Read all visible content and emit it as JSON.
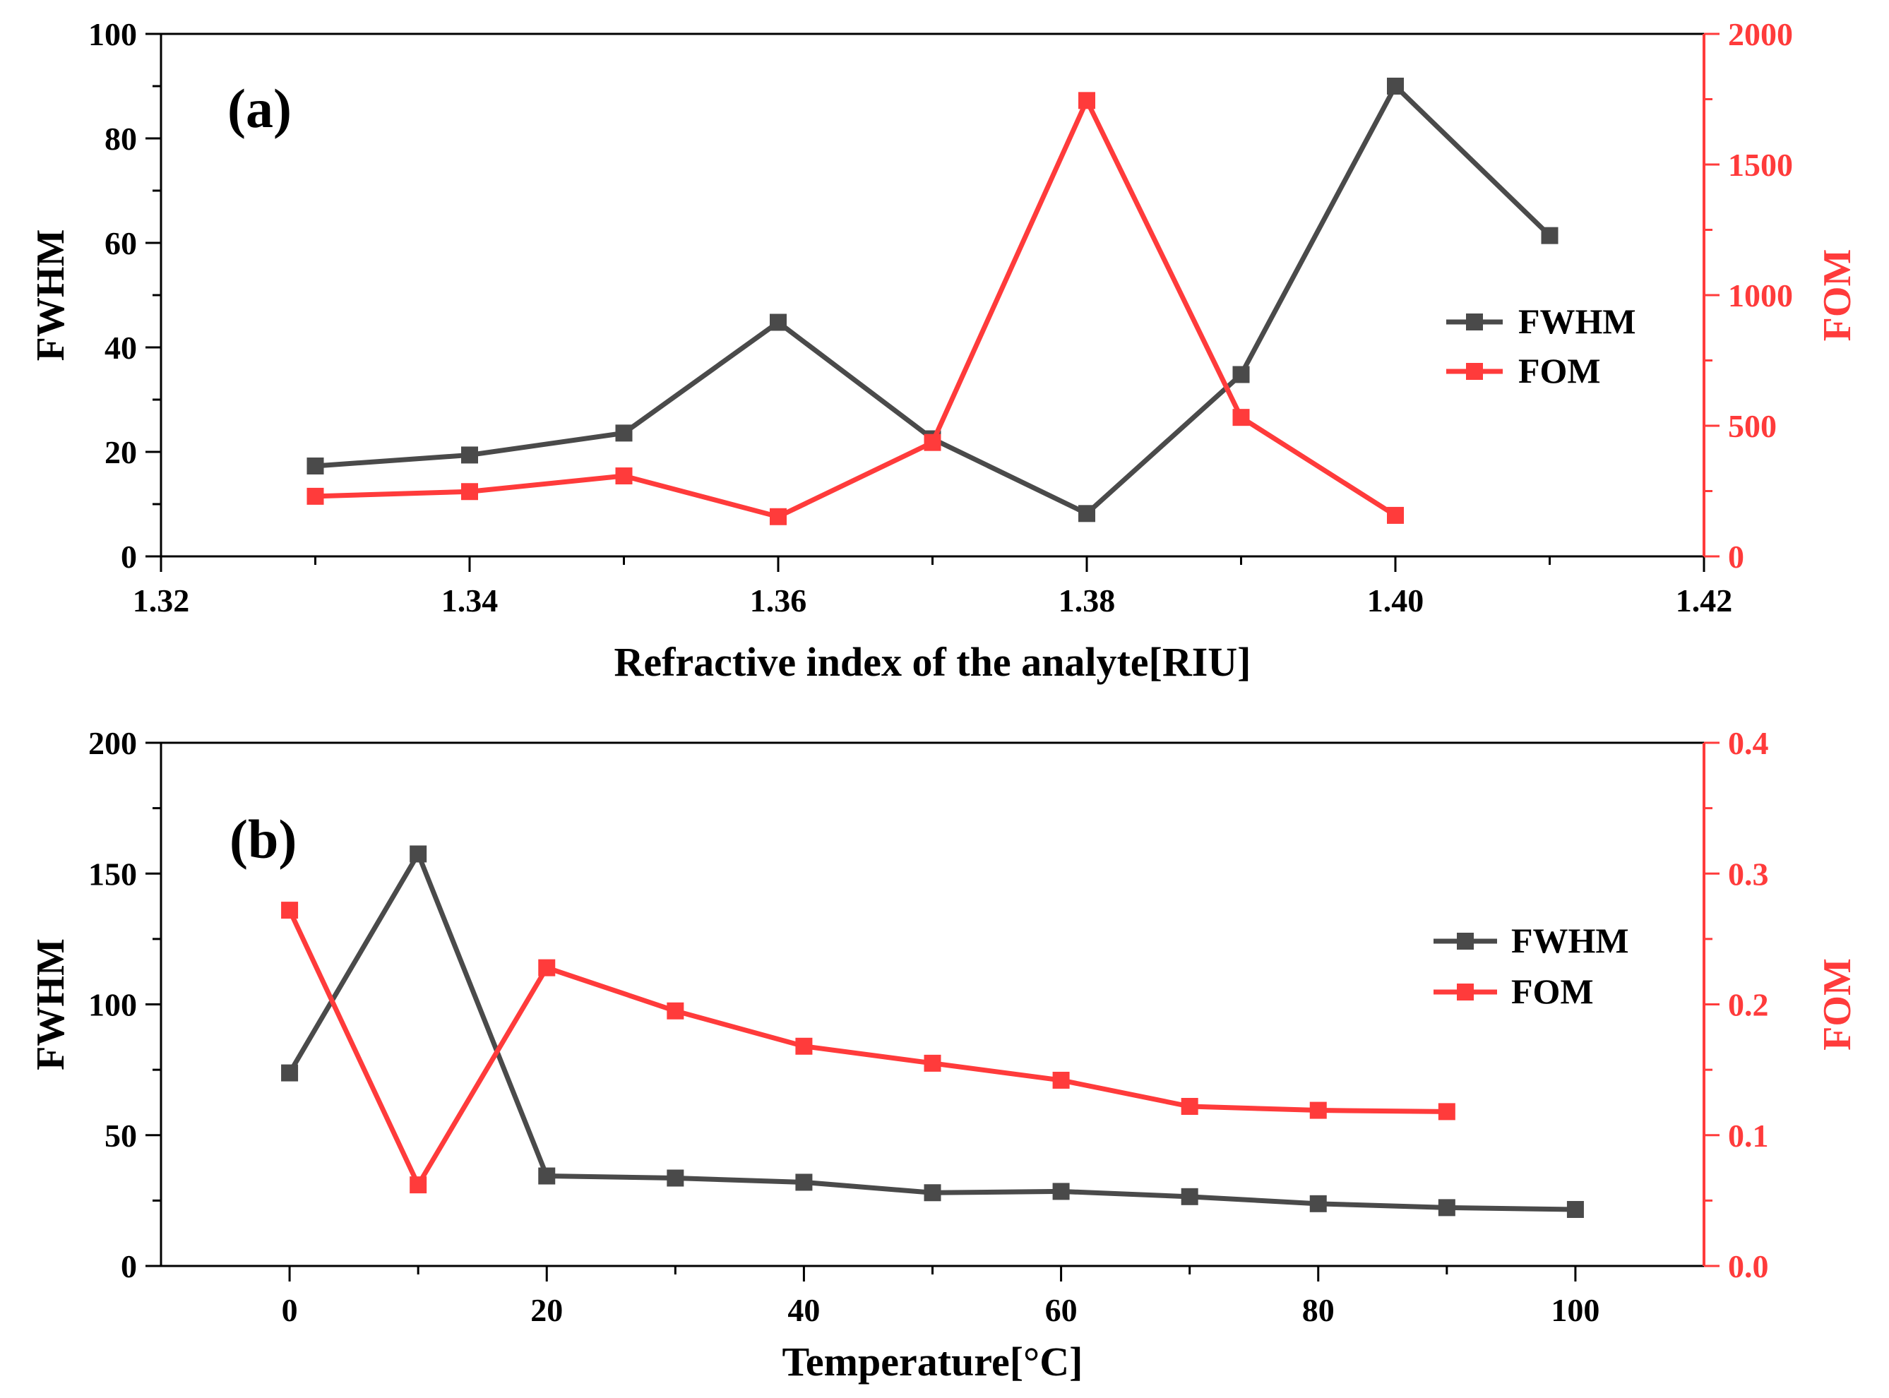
{
  "chart_data": [
    {
      "type": "line",
      "panel_label": "(a)",
      "xlabel": "Refractive index of the analyte[RIU]",
      "ylabel": "FWHM",
      "ylabel_right": "FOM",
      "xlim": [
        1.32,
        1.42
      ],
      "ylim": [
        0,
        100
      ],
      "ylim_right": [
        0,
        2000
      ],
      "x_ticks": [
        "1.32",
        "1.34",
        "1.36",
        "1.38",
        "1.40",
        "1.42"
      ],
      "y_ticks": [
        "0",
        "20",
        "40",
        "60",
        "80",
        "100"
      ],
      "y_ticks_right": [
        "0",
        "500",
        "1000",
        "1500",
        "2000"
      ],
      "legend_position": "right",
      "series": [
        {
          "name": "FWHM",
          "axis": "left",
          "color": "#4a4a4a",
          "x": [
            1.33,
            1.34,
            1.35,
            1.36,
            1.37,
            1.38,
            1.39,
            1.4,
            1.41
          ],
          "values": [
            17.3,
            19.4,
            23.6,
            44.8,
            22.5,
            8.2,
            34.8,
            90.0,
            61.4
          ]
        },
        {
          "name": "FOM",
          "axis": "right",
          "color": "#ff3b3b",
          "x": [
            1.33,
            1.34,
            1.35,
            1.36,
            1.37,
            1.38,
            1.39,
            1.4
          ],
          "values": [
            230,
            248,
            308,
            152,
            436,
            1745,
            532,
            157
          ]
        }
      ]
    },
    {
      "type": "line",
      "panel_label": "(b)",
      "xlabel": "Temperature[°C]",
      "ylabel": "FWHM",
      "ylabel_right": "FOM",
      "xlim": [
        -10,
        110
      ],
      "ylim": [
        0,
        200
      ],
      "ylim_right": [
        0,
        0.4
      ],
      "x_ticks": [
        "0",
        "20",
        "40",
        "60",
        "80",
        "100"
      ],
      "x_tick_values": [
        0,
        20,
        40,
        60,
        80,
        100
      ],
      "y_ticks": [
        "0",
        "50",
        "100",
        "150",
        "200"
      ],
      "y_ticks_right": [
        "0.0",
        "0.1",
        "0.2",
        "0.3",
        "0.4"
      ],
      "legend_position": "right",
      "series": [
        {
          "name": "FWHM",
          "axis": "left",
          "color": "#4a4a4a",
          "x": [
            0,
            10,
            20,
            30,
            40,
            50,
            60,
            70,
            80,
            90,
            100
          ],
          "values": [
            73.8,
            157.5,
            34.4,
            33.6,
            32.0,
            28.0,
            28.5,
            26.5,
            23.8,
            22.3,
            21.6
          ]
        },
        {
          "name": "FOM",
          "axis": "right",
          "color": "#ff3b3b",
          "x": [
            0,
            10,
            20,
            30,
            40,
            50,
            60,
            70,
            80,
            90
          ],
          "values": [
            0.272,
            0.062,
            0.228,
            0.195,
            0.168,
            0.155,
            0.142,
            0.122,
            0.119,
            0.118
          ]
        }
      ]
    }
  ]
}
